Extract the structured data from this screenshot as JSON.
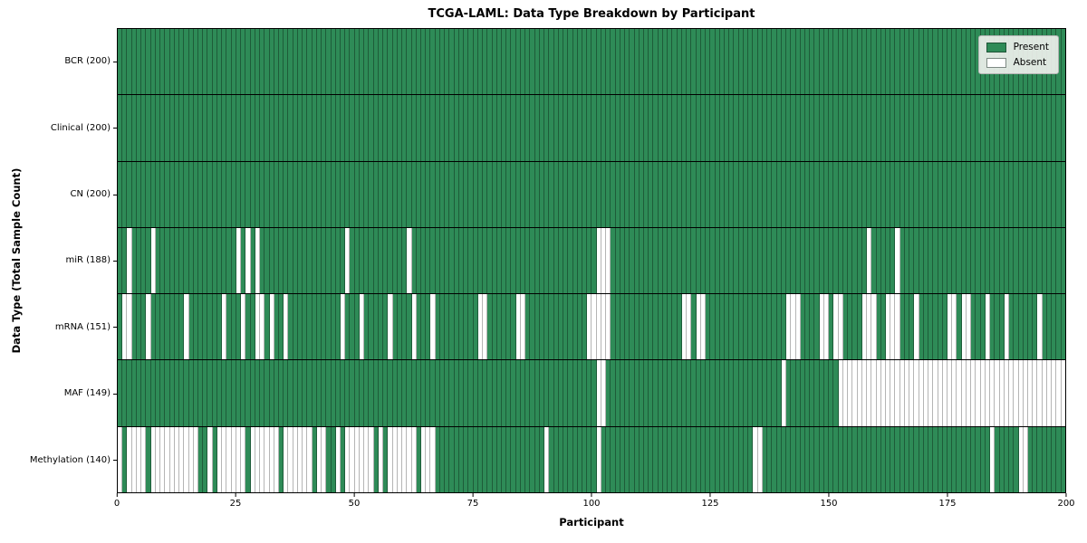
{
  "chart_data": {
    "type": "heatmap",
    "title": "TCGA-LAML: Data Type Breakdown by Participant",
    "xlabel": "Participant",
    "ylabel": "Data Type (Total Sample Count)",
    "n_participants": 200,
    "x_axis_range": [
      0,
      200
    ],
    "x_ticks": [
      0,
      25,
      50,
      75,
      100,
      125,
      150,
      175,
      200
    ],
    "grid": false,
    "legend_position": "upper right",
    "legend": [
      {
        "label": "Present",
        "color": "#2e8b57"
      },
      {
        "label": "Absent",
        "color": "#ffffff"
      }
    ],
    "cell_state_values": {
      "present": 1,
      "absent": 0
    },
    "rows": [
      {
        "label": "BCR",
        "total_samples": 200,
        "display": "BCR (200)",
        "absent_participants": []
      },
      {
        "label": "Clinical",
        "total_samples": 200,
        "display": "Clinical (200)",
        "absent_participants": []
      },
      {
        "label": "CN",
        "total_samples": 200,
        "display": "CN (200)",
        "absent_participants": []
      },
      {
        "label": "miR",
        "total_samples": 188,
        "display": "miR (188)",
        "absent_participants": [
          2,
          7,
          25,
          27,
          29,
          48,
          61,
          101,
          102,
          103,
          158,
          164
        ]
      },
      {
        "label": "mRNA",
        "total_samples": 151,
        "display": "mRNA (151)",
        "absent_participants": [
          1,
          2,
          6,
          14,
          22,
          26,
          29,
          30,
          32,
          35,
          47,
          51,
          57,
          62,
          66,
          76,
          77,
          84,
          85,
          99,
          100,
          101,
          102,
          103,
          119,
          120,
          122,
          123,
          141,
          142,
          143,
          148,
          149,
          151,
          152,
          157,
          158,
          159,
          162,
          163,
          164,
          168,
          175,
          176,
          178,
          179,
          183,
          187,
          194
        ]
      },
      {
        "label": "MAF",
        "total_samples": 149,
        "display": "MAF (149)",
        "absent_participants": [
          101,
          102,
          140,
          152,
          153,
          154,
          155,
          156,
          157,
          158,
          159,
          160,
          161,
          162,
          163,
          164,
          165,
          166,
          167,
          168,
          169,
          170,
          171,
          172,
          173,
          174,
          175,
          176,
          177,
          178,
          179,
          180,
          181,
          182,
          183,
          184,
          185,
          186,
          187,
          188,
          189,
          190,
          191,
          192,
          193,
          194,
          195,
          196,
          197,
          198,
          199
        ]
      },
      {
        "label": "Methylation",
        "total_samples": 140,
        "display": "Methylation (140)",
        "absent_participants": [
          0,
          2,
          3,
          4,
          5,
          7,
          8,
          9,
          10,
          11,
          12,
          13,
          14,
          15,
          16,
          19,
          21,
          22,
          23,
          24,
          25,
          26,
          28,
          29,
          30,
          31,
          32,
          33,
          35,
          36,
          37,
          38,
          39,
          40,
          42,
          43,
          46,
          48,
          49,
          50,
          51,
          52,
          53,
          55,
          57,
          58,
          59,
          60,
          61,
          62,
          64,
          65,
          66,
          90,
          101,
          134,
          135,
          184,
          190,
          191
        ]
      }
    ],
    "colors": {
      "present": "#2e8b57",
      "absent": "#ffffff",
      "row_divider": "#000000"
    }
  }
}
